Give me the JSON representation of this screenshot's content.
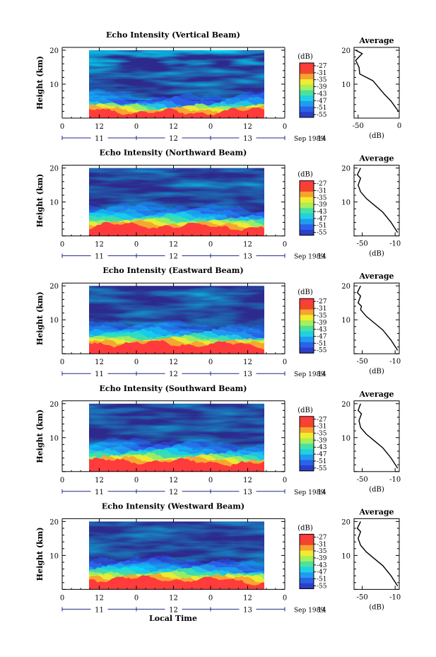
{
  "figure": {
    "date_label": "Sep 1989",
    "xlabel": "Local Time",
    "hour_ticks": [
      "0",
      "12",
      "0",
      "12",
      "0",
      "12",
      "0"
    ],
    "day_ticks": [
      "11",
      "12",
      "13",
      "14"
    ],
    "ylabel": "Height (km)",
    "y_ticks": [
      "10",
      "20"
    ],
    "colorbar_unit": "(dB)",
    "colorbar_ticks": [
      "-27",
      "-31",
      "-35",
      "-39",
      "-43",
      "-47",
      "-51",
      "-55"
    ],
    "colors": {
      "colormap": [
        "#2d2a8c",
        "#2b3fc8",
        "#2a63e8",
        "#1f9cf0",
        "#21d1e3",
        "#49e2a0",
        "#a8ef5a",
        "#f1ec2f",
        "#f7a330",
        "#f2462c",
        "#ff3b3b"
      ]
    }
  },
  "chart_data": [
    {
      "type": "heatmap",
      "title": "Echo Intensity (Vertical Beam)",
      "ylabel": "Height (km)",
      "ylim": [
        0,
        20
      ],
      "unit": "dB",
      "color_range": [
        -55,
        -27
      ],
      "profile": {
        "title": "Average",
        "xlabel": "(dB)",
        "x_ticks": [
          "-50",
          "0"
        ],
        "xlim": [
          -55,
          0
        ],
        "y_ticks": [
          "10",
          "20"
        ],
        "points": [
          [
            -1,
            2
          ],
          [
            -10,
            5
          ],
          [
            -18,
            7
          ],
          [
            -25,
            9
          ],
          [
            -32,
            11
          ],
          [
            -40,
            12
          ],
          [
            -48,
            13
          ],
          [
            -49,
            15
          ],
          [
            -53,
            17
          ],
          [
            -45,
            19
          ],
          [
            -53,
            20
          ]
        ]
      }
    },
    {
      "type": "heatmap",
      "title": "Echo Intensity (Northward Beam)",
      "ylabel": "Height (km)",
      "ylim": [
        0,
        20
      ],
      "unit": "dB",
      "color_range": [
        -55,
        -27
      ],
      "profile": {
        "title": "Average",
        "xlabel": "(dB)",
        "x_ticks": [
          "-50",
          "-10"
        ],
        "xlim": [
          -60,
          -5
        ],
        "y_ticks": [
          "10",
          "20"
        ],
        "points": [
          [
            -7,
            1
          ],
          [
            -15,
            4
          ],
          [
            -25,
            7
          ],
          [
            -35,
            9
          ],
          [
            -45,
            11
          ],
          [
            -52,
            13
          ],
          [
            -55,
            15
          ],
          [
            -52,
            17
          ],
          [
            -56,
            18
          ],
          [
            -52,
            20
          ]
        ]
      }
    },
    {
      "type": "heatmap",
      "title": "Echo Intensity (Eastward Beam)",
      "ylabel": "Height (km)",
      "ylim": [
        0,
        20
      ],
      "unit": "dB",
      "color_range": [
        -55,
        -27
      ],
      "profile": {
        "title": "Average",
        "xlabel": "(dB)",
        "x_ticks": [
          "-50",
          "-10"
        ],
        "xlim": [
          -60,
          -5
        ],
        "y_ticks": [
          "10",
          "20"
        ],
        "points": [
          [
            -7,
            1
          ],
          [
            -15,
            4
          ],
          [
            -25,
            7
          ],
          [
            -35,
            9
          ],
          [
            -45,
            11
          ],
          [
            -52,
            13
          ],
          [
            -51,
            14
          ],
          [
            -55,
            15
          ],
          [
            -52,
            17
          ],
          [
            -56,
            18
          ],
          [
            -52,
            20
          ]
        ]
      }
    },
    {
      "type": "heatmap",
      "title": "Echo Intensity (Southward Beam)",
      "ylabel": "Height (km)",
      "ylim": [
        0,
        20
      ],
      "unit": "dB",
      "color_range": [
        -55,
        -27
      ],
      "profile": {
        "title": "Average",
        "xlabel": "(dB)",
        "x_ticks": [
          "-50",
          "-10"
        ],
        "xlim": [
          -60,
          -5
        ],
        "y_ticks": [
          "10",
          "20"
        ],
        "points": [
          [
            -7,
            1
          ],
          [
            -15,
            4
          ],
          [
            -25,
            7
          ],
          [
            -35,
            9
          ],
          [
            -45,
            11
          ],
          [
            -52,
            13
          ],
          [
            -54,
            15
          ],
          [
            -51,
            17
          ],
          [
            -55,
            18
          ],
          [
            -52,
            20
          ]
        ]
      }
    },
    {
      "type": "heatmap",
      "title": "Echo Intensity (Westward Beam)",
      "ylabel": "Height (km)",
      "ylim": [
        0,
        20
      ],
      "unit": "dB",
      "color_range": [
        -55,
        -27
      ],
      "profile": {
        "title": "Average",
        "xlabel": "(dB)",
        "x_ticks": [
          "-50",
          "-10"
        ],
        "xlim": [
          -60,
          -5
        ],
        "y_ticks": [
          "10",
          "20"
        ],
        "points": [
          [
            -7,
            1
          ],
          [
            -15,
            4
          ],
          [
            -25,
            7
          ],
          [
            -35,
            9
          ],
          [
            -45,
            11
          ],
          [
            -52,
            13
          ],
          [
            -55,
            15
          ],
          [
            -52,
            17
          ],
          [
            -56,
            18
          ],
          [
            -52,
            20
          ]
        ]
      }
    }
  ]
}
